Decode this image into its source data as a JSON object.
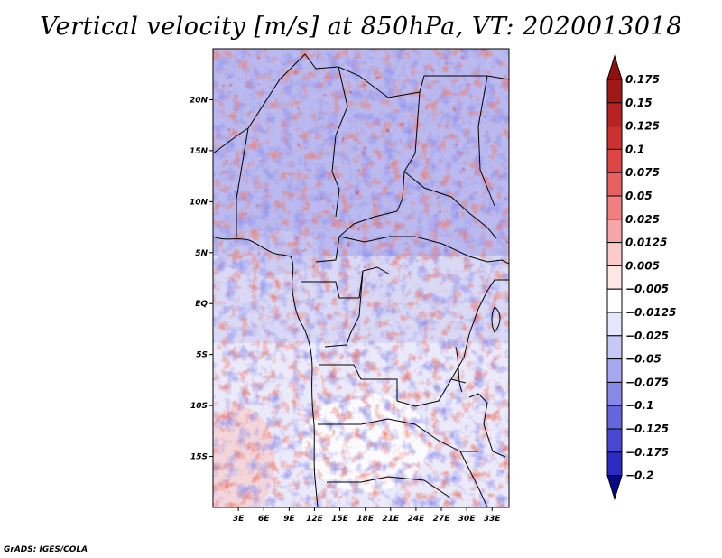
{
  "title": "Vertical velocity [m/s] at 850hPa, VT: 2020013018",
  "credit": "GrADS: IGES/COLA",
  "map": {
    "lon_range": [
      0,
      35
    ],
    "lat_range": [
      -20,
      25
    ],
    "lat_ticks": [
      {
        "value": 20,
        "label": "20N"
      },
      {
        "value": 15,
        "label": "15N"
      },
      {
        "value": 10,
        "label": "10N"
      },
      {
        "value": 5,
        "label": "5N"
      },
      {
        "value": 0,
        "label": "EQ"
      },
      {
        "value": -5,
        "label": "5S"
      },
      {
        "value": -10,
        "label": "10S"
      },
      {
        "value": -15,
        "label": "15S"
      }
    ],
    "lon_ticks": [
      {
        "value": 3,
        "label": "3E"
      },
      {
        "value": 6,
        "label": "6E"
      },
      {
        "value": 9,
        "label": "9E"
      },
      {
        "value": 12,
        "label": "12E"
      },
      {
        "value": 15,
        "label": "15E"
      },
      {
        "value": 18,
        "label": "18E"
      },
      {
        "value": 21,
        "label": "21E"
      },
      {
        "value": 24,
        "label": "24E"
      },
      {
        "value": 27,
        "label": "27E"
      },
      {
        "value": 30,
        "label": "30E"
      },
      {
        "value": 33,
        "label": "33E"
      }
    ]
  },
  "colorbar": {
    "levels": [
      {
        "label": "0.175",
        "color": "#a01818"
      },
      {
        "label": "0.15",
        "color": "#b82222"
      },
      {
        "label": "0.125",
        "color": "#cc3030"
      },
      {
        "label": "0.1",
        "color": "#dd4444"
      },
      {
        "label": "0.075",
        "color": "#e86060"
      },
      {
        "label": "0.05",
        "color": "#f08080"
      },
      {
        "label": "0.025",
        "color": "#f6a6a6"
      },
      {
        "label": "0.0125",
        "color": "#fbcaca"
      },
      {
        "label": "0.005",
        "color": "#fde6e6"
      },
      {
        "label": "-0.005",
        "color": "#ffffff"
      },
      {
        "label": "-0.0125",
        "color": "#e6e6fd"
      },
      {
        "label": "-0.025",
        "color": "#c8c8f6"
      },
      {
        "label": "-0.05",
        "color": "#a8a8f0"
      },
      {
        "label": "-0.075",
        "color": "#8888e6"
      },
      {
        "label": "-0.1",
        "color": "#6666dc"
      },
      {
        "label": "-0.125",
        "color": "#4848d2"
      },
      {
        "label": "-0.175",
        "color": "#2c2cc4"
      },
      {
        "label": "-0.2",
        "color": "#1414b0"
      }
    ],
    "top_color": "#8e1010",
    "bottom_color": "#08088a"
  }
}
